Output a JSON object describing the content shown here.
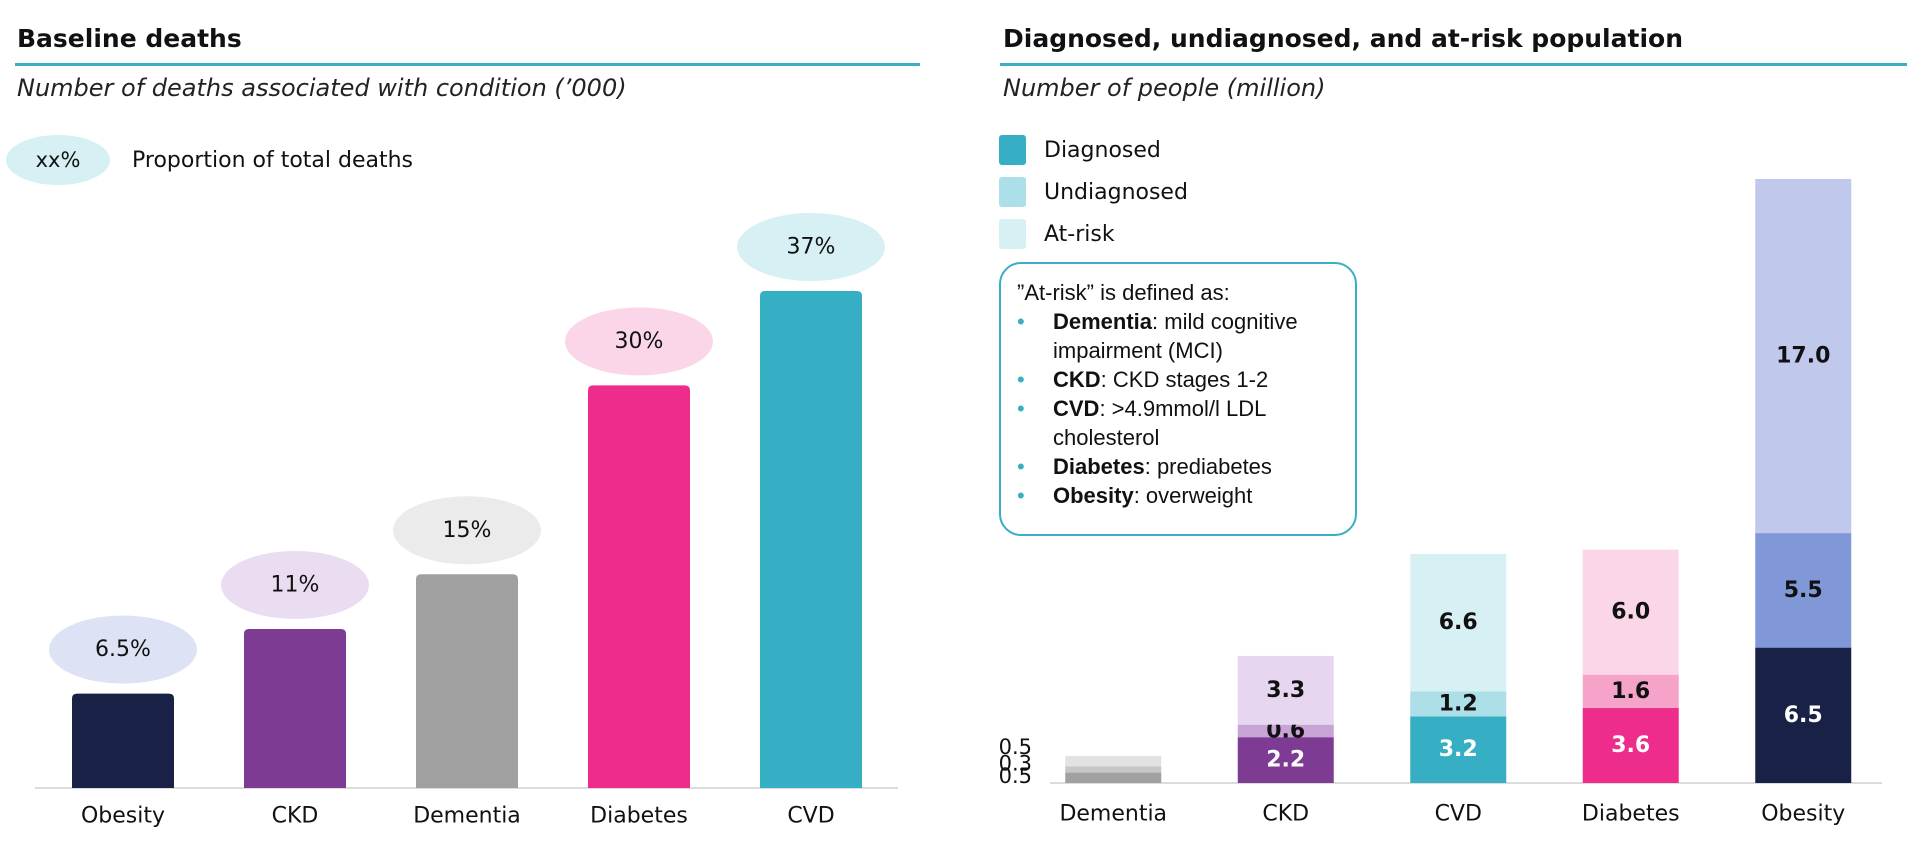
{
  "left_panel": {
    "title": "Baseline deaths",
    "subtitle": "Number of deaths associated with condition (’000)",
    "legend": {
      "badge": "xx%",
      "label": "Proportion of total deaths",
      "badge_color": "#d6f0f4"
    }
  },
  "right_panel": {
    "title": "Diagnosed, undiagnosed, and at-risk population",
    "subtitle": "Number of people (million)",
    "legend": [
      {
        "label": "Diagnosed",
        "color": "#36aec4"
      },
      {
        "label": "Undiagnosed",
        "color": "#acdfe8"
      },
      {
        "label": "At-risk",
        "color": "#d6f0f4"
      }
    ],
    "callout": {
      "heading": "”At-risk” is defined as:",
      "items": [
        {
          "term": "Dementia",
          "text": ": mild cognitive impairment (MCI)"
        },
        {
          "term": "CKD",
          "text": ": CKD stages 1-2"
        },
        {
          "term": "CVD",
          "text": ": >4.9mmol/l LDL cholesterol"
        },
        {
          "term": "Diabetes",
          "text": ": prediabetes"
        },
        {
          "term": "Obesity",
          "text": ": overweight"
        }
      ]
    }
  },
  "chart_data": [
    {
      "type": "bar",
      "title": "Baseline deaths",
      "subtitle": "Number of deaths associated with condition (’000)",
      "categories": [
        "Obesity",
        "CKD",
        "Dementia",
        "Diabetes",
        "CVD"
      ],
      "values": [
        19,
        32,
        43,
        81,
        100
      ],
      "share_labels": [
        "6.5%",
        "11%",
        "15%",
        "30%",
        "37%"
      ],
      "colors": [
        "#1a2147",
        "#7e3b93",
        "#a0a0a0",
        "#ee2c8c",
        "#36aec4"
      ],
      "badge_colors": [
        "#dde3f5",
        "#eaddf1",
        "#ebebeb",
        "#fad6e8",
        "#d6f0f4"
      ],
      "ylim": [
        0,
        100
      ],
      "note": "bar heights in relative units (no axis shown)"
    },
    {
      "type": "bar",
      "stacked": true,
      "title": "Diagnosed, undiagnosed, and at-risk population",
      "subtitle": "Number of people (million)",
      "categories": [
        "Dementia",
        "CKD",
        "CVD",
        "Diabetes",
        "Obesity"
      ],
      "series": [
        {
          "name": "Diagnosed",
          "values": [
            0.5,
            2.2,
            3.2,
            3.6,
            6.5
          ],
          "labels": [
            "0.5",
            "2.2",
            "3.2",
            "3.6",
            "6.5"
          ]
        },
        {
          "name": "Undiagnosed",
          "values": [
            0.3,
            0.6,
            1.2,
            1.6,
            5.5
          ],
          "labels": [
            "0.3",
            "0.6",
            "1.2",
            "1.6",
            "5.5"
          ]
        },
        {
          "name": "At-risk",
          "values": [
            0.5,
            3.3,
            6.6,
            6.0,
            17.0
          ],
          "labels": [
            "0.5",
            "3.3",
            "6.6",
            "6.0",
            "17.0"
          ]
        }
      ],
      "colors": [
        [
          "#a0a0a0",
          "#c6c6c6",
          "#e2e2e2"
        ],
        [
          "#7e3b93",
          "#c7a3d6",
          "#e7d6ef"
        ],
        [
          "#36aec4",
          "#acdfe8",
          "#d6f0f4"
        ],
        [
          "#ee2c8c",
          "#f5a3c9",
          "#fad6e8"
        ],
        [
          "#1a2147",
          "#8097d8",
          "#c0c8ec"
        ]
      ],
      "ylim": [
        0,
        29
      ]
    }
  ]
}
